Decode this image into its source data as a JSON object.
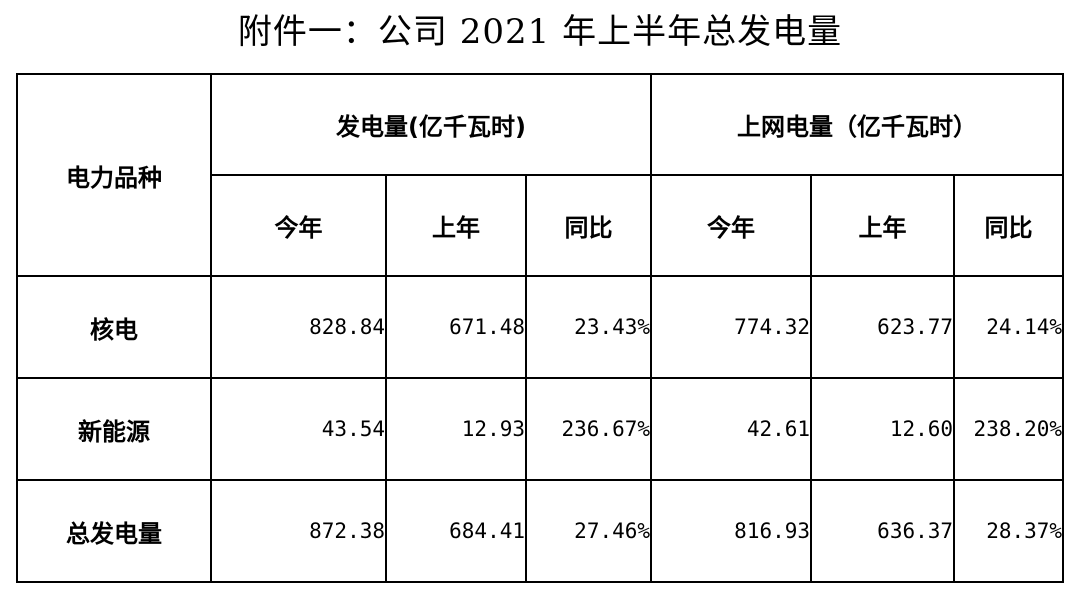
{
  "title": "附件一：公司 2021 年上半年总发电量",
  "table": {
    "corner_header": "电力品种",
    "group_headers": [
      "发电量(亿千瓦时)",
      "上网电量（亿千瓦时）"
    ],
    "sub_headers": [
      "今年",
      "上年",
      "同比",
      "今年",
      "上年",
      "同比"
    ],
    "rows": [
      {
        "label": "核电",
        "cells": [
          "828.84",
          "671.48",
          "23.43%",
          "774.32",
          "623.77",
          "24.14%"
        ]
      },
      {
        "label": "新能源",
        "cells": [
          "43.54",
          "12.93",
          "236.67%",
          "42.61",
          "12.60",
          "238.20%"
        ]
      },
      {
        "label": "总发电量",
        "cells": [
          "872.38",
          "684.41",
          "27.46%",
          "816.93",
          "636.37",
          "28.37%"
        ]
      }
    ]
  }
}
